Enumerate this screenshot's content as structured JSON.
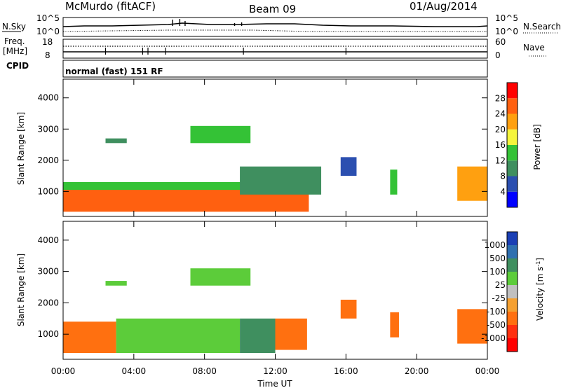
{
  "header": {
    "station": "McMurdo (fitACF)",
    "beam": "Beam 09",
    "date": "01/Aug/2014"
  },
  "top_panels": {
    "nsky_label": "N.Sky",
    "nsky_ticks": [
      "10^5",
      "10^0"
    ],
    "nsearch_label": "N.Search",
    "nsearch_ticks": [
      "10^5",
      "10^0"
    ],
    "freq_label": "Freq.",
    "freq_unit": "[MHz]",
    "freq_ticks": [
      "18",
      "8"
    ],
    "nave_label": "Nave",
    "nave_ticks": [
      "60",
      "0"
    ],
    "cpid_label": "CPID",
    "cpid_text": "normal (fast) 151 RF"
  },
  "colors": {
    "power_scale": [
      "#0000ff",
      "#2b4fb0",
      "#3f8f5f",
      "#34c236",
      "#f5f53c",
      "#ffa010",
      "#ff6010",
      "#ff0000"
    ],
    "velocity_scale": [
      "#1a3fb5",
      "#2f70b0",
      "#3f8f5f",
      "#5ccc3a",
      "#c0c0c0",
      "#f5a030",
      "#ff7010",
      "#ff3010",
      "#ff0000"
    ]
  },
  "chart_data": [
    {
      "type": "heatmap",
      "title": "",
      "xlabel": "Time UT",
      "ylabel": "Slant Range [km]",
      "x_ticks": [
        "00:00",
        "04:00",
        "08:00",
        "12:00",
        "16:00",
        "20:00",
        "00:00"
      ],
      "y_ticks": [
        "1000",
        "2000",
        "3000",
        "4000"
      ],
      "ylim": [
        200,
        4600
      ],
      "colorbar_label": "Power [dB]",
      "colorbar_ticks": [
        "4",
        "8",
        "12",
        "16",
        "20",
        "24",
        "28"
      ],
      "colorbar_range": [
        0,
        32
      ],
      "regions": [
        {
          "t0": 0.0,
          "t1": 13.9,
          "r0": 350,
          "r1": 1300,
          "val": 27
        },
        {
          "t0": 0.0,
          "t1": 13.9,
          "r0": 1050,
          "r1": 1300,
          "val": 14
        },
        {
          "t0": 10.0,
          "t1": 14.6,
          "r0": 900,
          "r1": 1800,
          "val": 10
        },
        {
          "t0": 2.4,
          "t1": 3.6,
          "r0": 2550,
          "r1": 2700,
          "val": 8
        },
        {
          "t0": 7.2,
          "t1": 10.6,
          "r0": 2550,
          "r1": 3100,
          "val": 12
        },
        {
          "t0": 15.7,
          "t1": 16.6,
          "r0": 1500,
          "r1": 2100,
          "val": 6
        },
        {
          "t0": 18.5,
          "t1": 18.9,
          "r0": 900,
          "r1": 1700,
          "val": 12
        },
        {
          "t0": 22.3,
          "t1": 24.0,
          "r0": 700,
          "r1": 1800,
          "val": 22
        }
      ]
    },
    {
      "type": "heatmap",
      "title": "",
      "xlabel": "Time UT",
      "ylabel": "Slant Range [km]",
      "x_ticks": [
        "00:00",
        "04:00",
        "08:00",
        "12:00",
        "16:00",
        "20:00",
        "00:00"
      ],
      "y_ticks": [
        "1000",
        "2000",
        "3000",
        "4000"
      ],
      "ylim": [
        200,
        4600
      ],
      "colorbar_label": "Velocity [m s^-1]",
      "colorbar_ticks": [
        "1000",
        "500",
        "100",
        "25",
        "-25",
        "-100",
        "-500",
        "-1000"
      ],
      "regions": [
        {
          "t0": 0.0,
          "t1": 3.0,
          "r0": 400,
          "r1": 1400,
          "val": -200
        },
        {
          "t0": 3.0,
          "t1": 10.0,
          "r0": 400,
          "r1": 1500,
          "val": 50
        },
        {
          "t0": 10.0,
          "t1": 12.0,
          "r0": 400,
          "r1": 1500,
          "val": 150
        },
        {
          "t0": 12.0,
          "t1": 13.8,
          "r0": 500,
          "r1": 1500,
          "val": -150
        },
        {
          "t0": 2.4,
          "t1": 3.6,
          "r0": 2550,
          "r1": 2700,
          "val": 60
        },
        {
          "t0": 7.2,
          "t1": 10.6,
          "r0": 2550,
          "r1": 3100,
          "val": 60
        },
        {
          "t0": 15.7,
          "t1": 16.6,
          "r0": 1500,
          "r1": 2100,
          "val": -200
        },
        {
          "t0": 18.5,
          "t1": 19.0,
          "r0": 900,
          "r1": 1700,
          "val": -300
        },
        {
          "t0": 22.3,
          "t1": 24.0,
          "r0": 700,
          "r1": 1800,
          "val": -300
        }
      ]
    }
  ]
}
